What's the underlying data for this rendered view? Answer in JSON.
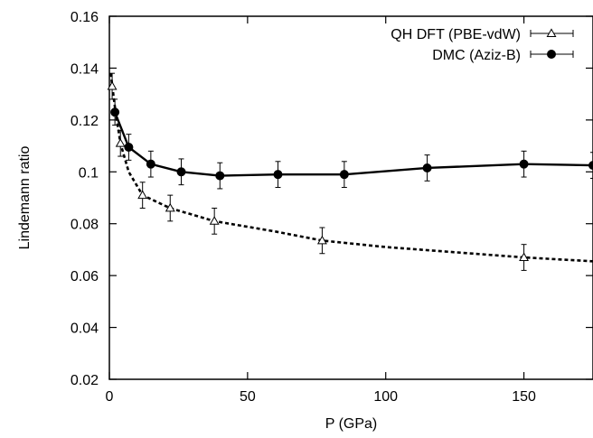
{
  "chart_data": {
    "type": "line",
    "title": "",
    "xlabel": "P (GPa)",
    "ylabel": "Lindemann ratio",
    "xlim": [
      0,
      175
    ],
    "ylim": [
      0.02,
      0.16
    ],
    "xticks": [
      0,
      50,
      100,
      150
    ],
    "yticks": [
      0.02,
      0.04,
      0.06,
      0.08,
      0.1,
      0.12,
      0.14,
      0.16
    ],
    "xtick_labels": [
      "0",
      "50",
      "100",
      "150"
    ],
    "ytick_labels": [
      "0.02",
      "0.04",
      "0.06",
      "0.08",
      "0.1",
      "0.12",
      "0.14",
      "0.16"
    ],
    "grid": false,
    "legend_position": "top-right",
    "series": [
      {
        "name": "QH DFT (PBE-vdW)",
        "marker": "open-triangle",
        "line_style": "dashed",
        "color": "#000000",
        "points": [
          {
            "x": 1,
            "y": 0.133,
            "err": 0.005
          },
          {
            "x": 4,
            "y": 0.111,
            "err": 0.005
          },
          {
            "x": 12,
            "y": 0.091,
            "err": 0.005
          },
          {
            "x": 22,
            "y": 0.086,
            "err": 0.005
          },
          {
            "x": 38,
            "y": 0.081,
            "err": 0.005
          },
          {
            "x": 77,
            "y": 0.0735,
            "err": 0.005
          },
          {
            "x": 150,
            "y": 0.067,
            "err": 0.005
          }
        ],
        "curve": [
          {
            "x": 0.5,
            "y": 0.138
          },
          {
            "x": 2,
            "y": 0.125
          },
          {
            "x": 4,
            "y": 0.111
          },
          {
            "x": 7,
            "y": 0.1
          },
          {
            "x": 12,
            "y": 0.091
          },
          {
            "x": 22,
            "y": 0.086
          },
          {
            "x": 38,
            "y": 0.081
          },
          {
            "x": 60,
            "y": 0.077
          },
          {
            "x": 77,
            "y": 0.0735
          },
          {
            "x": 100,
            "y": 0.071
          },
          {
            "x": 125,
            "y": 0.069
          },
          {
            "x": 150,
            "y": 0.067
          },
          {
            "x": 175,
            "y": 0.0655
          }
        ]
      },
      {
        "name": "DMC (Aziz-B)",
        "marker": "filled-circle",
        "line_style": "solid",
        "color": "#000000",
        "points": [
          {
            "x": 2,
            "y": 0.123,
            "err": 0.005
          },
          {
            "x": 7,
            "y": 0.1095,
            "err": 0.005
          },
          {
            "x": 15,
            "y": 0.103,
            "err": 0.005
          },
          {
            "x": 26,
            "y": 0.1,
            "err": 0.005
          },
          {
            "x": 40,
            "y": 0.0985,
            "err": 0.005
          },
          {
            "x": 61,
            "y": 0.099,
            "err": 0.005
          },
          {
            "x": 85,
            "y": 0.099,
            "err": 0.005
          },
          {
            "x": 115,
            "y": 0.1015,
            "err": 0.005
          },
          {
            "x": 150,
            "y": 0.103,
            "err": 0.005
          },
          {
            "x": 175,
            "y": 0.1025,
            "err": 0.005
          }
        ]
      }
    ]
  }
}
